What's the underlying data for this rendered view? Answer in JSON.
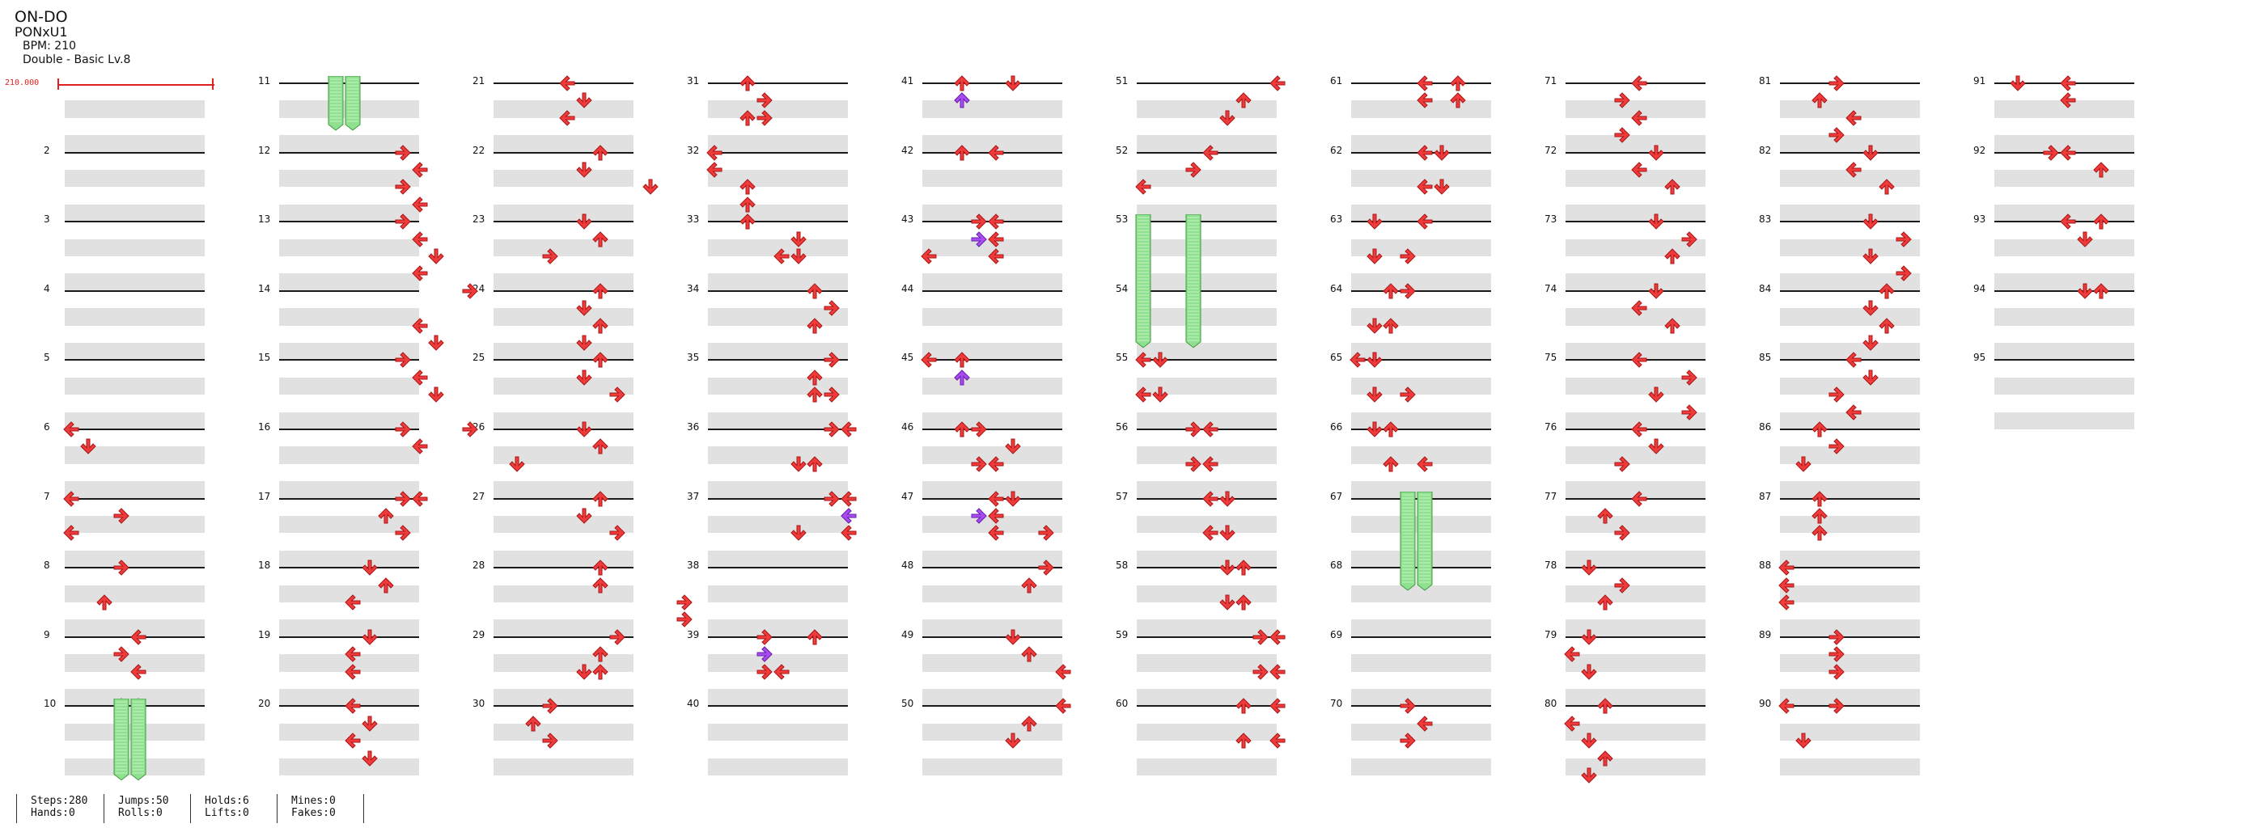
{
  "song": {
    "title": "ON-DO",
    "artist": "PONxU1",
    "bpm_label": "BPM: 210",
    "difficulty": "Double - Basic Lv.8",
    "bpm_marker": "210.000"
  },
  "colors": {
    "arrow": "#ef3b3b",
    "arrow_dark": "#a81616",
    "arrow_purple": "#a64cf0",
    "hold": "#8fe08f",
    "hold_dark": "#3f9a3f",
    "band": "#e1e1e1",
    "bpm": "#e02020"
  },
  "measure_numbers": [
    "",
    "2",
    "3",
    "4",
    "5",
    "6",
    "7",
    "8",
    "9",
    "10",
    "11",
    "12",
    "13",
    "14",
    "15",
    "16",
    "17",
    "18",
    "19",
    "20",
    "21",
    "22",
    "23",
    "24",
    "25",
    "26",
    "27",
    "28",
    "29",
    "30",
    "31",
    "32",
    "33",
    "34",
    "35",
    "36",
    "37",
    "38",
    "39",
    "40",
    "41",
    "42",
    "43",
    "44",
    "45",
    "46",
    "47",
    "48",
    "49",
    "50",
    "51",
    "52",
    "53",
    "54",
    "55",
    "56",
    "57",
    "58",
    "59",
    "60",
    "61",
    "62",
    "63",
    "64",
    "65",
    "66",
    "67",
    "68",
    "69",
    "70",
    "71",
    "72",
    "73",
    "74",
    "75",
    "76",
    "77",
    "78",
    "79",
    "80",
    "81",
    "82",
    "83",
    "84",
    "85",
    "86",
    "87",
    "88",
    "89",
    "90",
    "91",
    "92",
    "93",
    "94",
    "95"
  ],
  "notes": {
    "1": [],
    "2": [],
    "3": [],
    "4": [],
    "5": [],
    "6": [
      [
        0,
        0
      ],
      [
        1,
        1
      ]
    ],
    "7": [
      [
        0,
        0
      ],
      [
        1,
        3
      ],
      [
        2,
        0
      ]
    ],
    "8": [
      [
        0,
        3
      ],
      [
        2,
        2
      ]
    ],
    "9": [
      [
        0,
        4
      ],
      [
        1,
        3
      ],
      [
        2,
        4
      ]
    ],
    "10": [
      [
        0,
        3
      ],
      [
        0,
        4
      ]
    ],
    "11": [],
    "12": [
      [
        0,
        7
      ],
      [
        1,
        8
      ],
      [
        2,
        7
      ],
      [
        3,
        8
      ]
    ],
    "13": [
      [
        0,
        7
      ],
      [
        1,
        8
      ],
      [
        2,
        9
      ],
      [
        3,
        8
      ]
    ],
    "14": [
      [
        0,
        11
      ],
      [
        2,
        8
      ],
      [
        3,
        9
      ]
    ],
    "15": [
      [
        0,
        7
      ],
      [
        1,
        8
      ],
      [
        2,
        9
      ]
    ],
    "16": [
      [
        0,
        7
      ],
      [
        0,
        11
      ],
      [
        1,
        8
      ]
    ],
    "17": [
      [
        0,
        7
      ],
      [
        0,
        8
      ],
      [
        1,
        6
      ],
      [
        2,
        7
      ]
    ],
    "18": [
      [
        0,
        5
      ],
      [
        1,
        6
      ],
      [
        2,
        4
      ]
    ],
    "19": [
      [
        0,
        5
      ],
      [
        1,
        4
      ],
      [
        2,
        4
      ]
    ],
    "20": [
      [
        0,
        4
      ],
      [
        1,
        5
      ],
      [
        2,
        4
      ],
      [
        3,
        5
      ]
    ],
    "21": [
      [
        0,
        4
      ],
      [
        1,
        5
      ],
      [
        2,
        4
      ]
    ],
    "22": [
      [
        0,
        6
      ],
      [
        1,
        5
      ],
      [
        2,
        9
      ]
    ],
    "23": [
      [
        0,
        5
      ],
      [
        1,
        6
      ],
      [
        2,
        3
      ]
    ],
    "24": [
      [
        0,
        6
      ],
      [
        1,
        5
      ],
      [
        2,
        6
      ],
      [
        3,
        5
      ]
    ],
    "25": [
      [
        0,
        6
      ],
      [
        1,
        5
      ],
      [
        2,
        7
      ]
    ],
    "26": [
      [
        0,
        5
      ],
      [
        1,
        6
      ],
      [
        2,
        1
      ]
    ],
    "27": [
      [
        0,
        6
      ],
      [
        1,
        5
      ],
      [
        2,
        7
      ]
    ],
    "28": [
      [
        0,
        6
      ],
      [
        1,
        6
      ],
      [
        2,
        11
      ],
      [
        3,
        11
      ]
    ],
    "29": [
      [
        0,
        7
      ],
      [
        1,
        6
      ],
      [
        2,
        5
      ],
      [
        2,
        6
      ]
    ],
    "30": [
      [
        0,
        3
      ],
      [
        1,
        2
      ],
      [
        2,
        3
      ]
    ],
    "31": [
      [
        0,
        2
      ],
      [
        1,
        3
      ],
      [
        2,
        2
      ],
      [
        2,
        3
      ]
    ],
    "32": [
      [
        0,
        0
      ],
      [
        1,
        0
      ],
      [
        2,
        2
      ],
      [
        3,
        2
      ]
    ],
    "33": [
      [
        0,
        2
      ],
      [
        1,
        5
      ],
      [
        2,
        4
      ],
      [
        2,
        5
      ]
    ],
    "34": [
      [
        0,
        6
      ],
      [
        1,
        7
      ],
      [
        2,
        6
      ]
    ],
    "35": [
      [
        0,
        7
      ],
      [
        1,
        6
      ],
      [
        2,
        6
      ],
      [
        2,
        7
      ]
    ],
    "36": [
      [
        0,
        7
      ],
      [
        0,
        8
      ],
      [
        2,
        5
      ],
      [
        2,
        6
      ]
    ],
    "37": [
      [
        0,
        7
      ],
      [
        0,
        8
      ],
      [
        1,
        8
      ],
      [
        2,
        5
      ],
      [
        2,
        8
      ]
    ],
    "38": [],
    "39": [
      [
        0,
        3
      ],
      [
        0,
        6
      ],
      [
        1,
        3
      ],
      [
        2,
        3
      ],
      [
        2,
        4
      ]
    ],
    "40": [],
    "41": [
      [
        0,
        2
      ],
      [
        0,
        5
      ],
      [
        1,
        2
      ]
    ],
    "42": [
      [
        0,
        2
      ],
      [
        0,
        4
      ]
    ],
    "43": [
      [
        0,
        3
      ],
      [
        0,
        4
      ],
      [
        1,
        4
      ],
      [
        2,
        0
      ],
      [
        2,
        4
      ]
    ],
    "44": [],
    "45": [
      [
        0,
        0
      ],
      [
        0,
        2
      ],
      [
        1,
        2
      ]
    ],
    "46": [
      [
        0,
        2
      ],
      [
        0,
        3
      ],
      [
        1,
        5
      ],
      [
        2,
        3
      ],
      [
        2,
        4
      ]
    ],
    "47": [
      [
        0,
        4
      ],
      [
        0,
        5
      ],
      [
        1,
        4
      ],
      [
        2,
        4
      ],
      [
        2,
        7
      ]
    ],
    "48": [
      [
        0,
        7
      ],
      [
        1,
        6
      ]
    ],
    "49": [
      [
        0,
        5
      ],
      [
        1,
        6
      ],
      [
        2,
        8
      ]
    ],
    "50": [
      [
        0,
        8
      ],
      [
        1,
        6
      ],
      [
        2,
        5
      ]
    ],
    "51": [
      [
        0,
        8
      ],
      [
        1,
        6
      ],
      [
        2,
        5
      ]
    ],
    "52": [
      [
        0,
        4
      ],
      [
        1,
        3
      ],
      [
        2,
        0
      ]
    ],
    "53": [],
    "54": [],
    "55": [
      [
        0,
        0
      ],
      [
        0,
        1
      ],
      [
        2,
        0
      ],
      [
        2,
        1
      ]
    ],
    "56": [
      [
        0,
        3
      ],
      [
        0,
        4
      ],
      [
        2,
        3
      ],
      [
        2,
        4
      ]
    ],
    "57": [
      [
        0,
        4
      ],
      [
        0,
        5
      ],
      [
        2,
        4
      ],
      [
        2,
        5
      ]
    ],
    "58": [
      [
        0,
        5
      ],
      [
        0,
        6
      ],
      [
        2,
        5
      ],
      [
        2,
        6
      ]
    ],
    "59": [
      [
        0,
        7
      ],
      [
        0,
        8
      ],
      [
        2,
        7
      ],
      [
        2,
        8
      ]
    ],
    "60": [
      [
        0,
        6
      ],
      [
        0,
        8
      ],
      [
        2,
        6
      ],
      [
        2,
        8
      ]
    ],
    "61": [
      [
        0,
        4
      ],
      [
        0,
        6
      ],
      [
        1,
        4
      ],
      [
        1,
        6
      ]
    ],
    "62": [
      [
        0,
        4
      ],
      [
        0,
        5
      ],
      [
        2,
        4
      ],
      [
        2,
        5
      ]
    ],
    "63": [
      [
        0,
        1
      ],
      [
        0,
        4
      ],
      [
        2,
        1
      ],
      [
        2,
        3
      ]
    ],
    "64": [
      [
        0,
        2
      ],
      [
        0,
        3
      ],
      [
        2,
        1
      ],
      [
        2,
        2
      ]
    ],
    "65": [
      [
        0,
        0
      ],
      [
        0,
        1
      ],
      [
        2,
        1
      ],
      [
        2,
        3
      ]
    ],
    "66": [
      [
        0,
        1
      ],
      [
        0,
        2
      ],
      [
        2,
        2
      ],
      [
        2,
        4
      ]
    ],
    "67": [],
    "68": [],
    "69": [],
    "70": [
      [
        0,
        3
      ],
      [
        1,
        4
      ],
      [
        2,
        3
      ]
    ],
    "71": [
      [
        0,
        4
      ],
      [
        1,
        3
      ],
      [
        2,
        4
      ],
      [
        3,
        3
      ]
    ],
    "72": [
      [
        0,
        5
      ],
      [
        1,
        4
      ],
      [
        2,
        6
      ]
    ],
    "73": [
      [
        0,
        5
      ],
      [
        1,
        7
      ],
      [
        2,
        6
      ]
    ],
    "74": [
      [
        0,
        5
      ],
      [
        1,
        4
      ],
      [
        2,
        6
      ]
    ],
    "75": [
      [
        0,
        4
      ],
      [
        1,
        7
      ],
      [
        2,
        5
      ],
      [
        3,
        7
      ]
    ],
    "76": [
      [
        0,
        4
      ],
      [
        1,
        5
      ],
      [
        2,
        3
      ]
    ],
    "77": [
      [
        0,
        4
      ],
      [
        1,
        2
      ],
      [
        2,
        3
      ]
    ],
    "78": [
      [
        0,
        1
      ],
      [
        1,
        3
      ],
      [
        2,
        2
      ]
    ],
    "79": [
      [
        0,
        1
      ],
      [
        1,
        0
      ],
      [
        2,
        1
      ]
    ],
    "80": [
      [
        0,
        2
      ],
      [
        1,
        0
      ],
      [
        2,
        1
      ],
      [
        3,
        2
      ],
      [
        4,
        1
      ]
    ],
    "81": [
      [
        0,
        3
      ],
      [
        1,
        2
      ],
      [
        2,
        4
      ],
      [
        3,
        3
      ]
    ],
    "82": [
      [
        0,
        5
      ],
      [
        1,
        4
      ],
      [
        2,
        6
      ]
    ],
    "83": [
      [
        0,
        5
      ],
      [
        1,
        7
      ],
      [
        2,
        5
      ],
      [
        3,
        7
      ]
    ],
    "84": [
      [
        0,
        6
      ],
      [
        1,
        5
      ],
      [
        2,
        6
      ],
      [
        3,
        5
      ]
    ],
    "85": [
      [
        0,
        4
      ],
      [
        1,
        5
      ],
      [
        2,
        3
      ],
      [
        3,
        4
      ]
    ],
    "86": [
      [
        0,
        2
      ],
      [
        1,
        3
      ],
      [
        2,
        1
      ]
    ],
    "87": [
      [
        0,
        2
      ],
      [
        1,
        2
      ],
      [
        2,
        2
      ]
    ],
    "88": [
      [
        0,
        0
      ],
      [
        1,
        0
      ],
      [
        2,
        0
      ]
    ],
    "89": [
      [
        0,
        3
      ],
      [
        1,
        3
      ],
      [
        2,
        3
      ]
    ],
    "90": [
      [
        0,
        0
      ],
      [
        0,
        3
      ],
      [
        2,
        1
      ]
    ],
    "91": [
      [
        0,
        1
      ],
      [
        0,
        4
      ],
      [
        1,
        4
      ]
    ],
    "92": [
      [
        0,
        3
      ],
      [
        0,
        4
      ],
      [
        1,
        6
      ]
    ],
    "93": [
      [
        0,
        4
      ],
      [
        0,
        6
      ],
      [
        1,
        5
      ]
    ],
    "94": [
      [
        0,
        5
      ],
      [
        0,
        6
      ]
    ],
    "95": []
  },
  "purple_notes": [
    [
      41,
      1,
      2
    ],
    [
      43,
      1,
      3
    ],
    [
      45,
      1,
      2
    ],
    [
      47,
      1,
      3
    ],
    [
      37,
      1,
      8
    ],
    [
      39,
      1,
      3
    ]
  ],
  "holds": [
    [
      11,
      0,
      3,
      0
    ],
    [
      11,
      0,
      4,
      0
    ],
    [
      10,
      0,
      3,
      4
    ],
    [
      10,
      0,
      4,
      4
    ],
    [
      53,
      0,
      0,
      7
    ],
    [
      53,
      0,
      3,
      7
    ],
    [
      67,
      0,
      3,
      5
    ],
    [
      67,
      0,
      4,
      5
    ]
  ],
  "stats": {
    "col1": [
      "Steps:280",
      "Hands:0"
    ],
    "col2": [
      "Jumps:50",
      "Rolls:0"
    ],
    "col3": [
      "Holds:6",
      "Lifts:0"
    ],
    "col4": [
      "Mines:0",
      "Fakes:0"
    ]
  }
}
